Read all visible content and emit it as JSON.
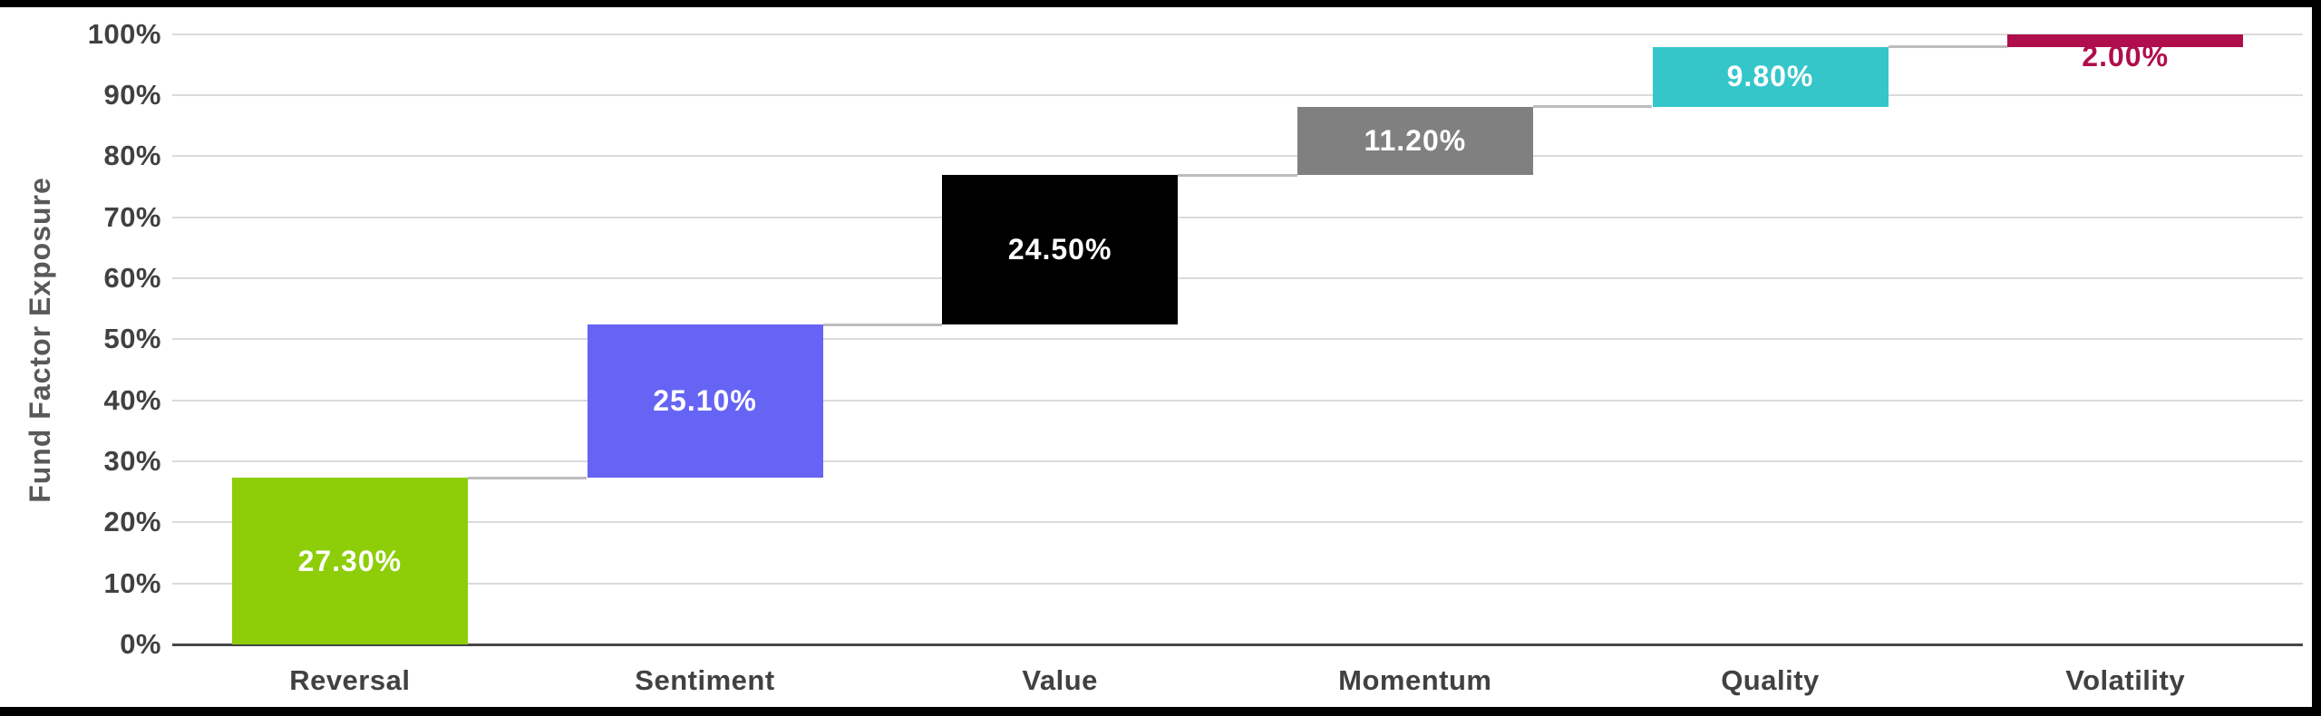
{
  "chart_data": {
    "type": "bar",
    "subtype": "waterfall",
    "title": "",
    "xlabel": "",
    "ylabel": "Fund Factor Exposure",
    "ylim": [
      0,
      100
    ],
    "ytick_step": 10,
    "yticks": [
      "0%",
      "10%",
      "20%",
      "30%",
      "40%",
      "50%",
      "60%",
      "70%",
      "80%",
      "90%",
      "100%"
    ],
    "grid": "horizontal",
    "legend": "none",
    "categories": [
      "Reversal",
      "Sentiment",
      "Value",
      "Momentum",
      "Quality",
      "Volatility"
    ],
    "values": [
      27.3,
      25.1,
      24.5,
      11.2,
      9.8,
      2.0
    ],
    "value_labels": [
      "27.30%",
      "25.10%",
      "24.50%",
      "11.20%",
      "9.80%",
      "2.00%"
    ],
    "cumulative": [
      27.3,
      52.4,
      76.9,
      88.1,
      97.9,
      99.9
    ],
    "bar_colors": [
      "#8DCE08",
      "#6664F4",
      "#000000",
      "#808080",
      "#35C6CA",
      "#B00D4C"
    ],
    "label_colors": [
      "#FFFFFF",
      "#FFFFFF",
      "#FFFFFF",
      "#FFFFFF",
      "#FFFFFF",
      "#B00D4C"
    ],
    "label_inside": [
      true,
      true,
      true,
      true,
      true,
      false
    ]
  },
  "colors": {
    "background": "#FFFFFF",
    "frame": "#000000",
    "gridline": "#DBDBDB",
    "axis_line": "#47474A",
    "connector": "#BDBDBD",
    "tick_text": "#414042",
    "axis_title_text": "#58595B",
    "category_text": "#414042"
  }
}
